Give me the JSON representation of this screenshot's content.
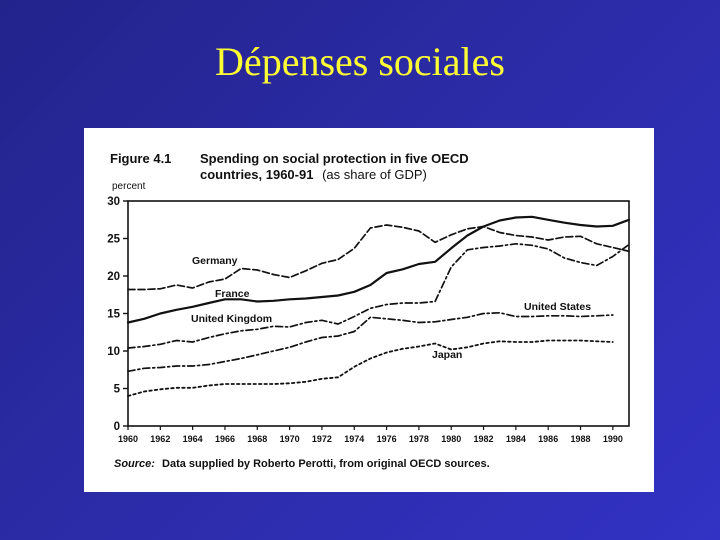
{
  "slide": {
    "title": "Dépenses sociales"
  },
  "figure": {
    "number": "Figure 4.1",
    "title_bold_1": "Spending on social protection in five OECD",
    "title_bold_2": "countries, 1960-91",
    "title_normal": "(as share of GDP)",
    "unit": "percent",
    "source_label": "Source:",
    "source_text": "Data supplied by Roberto Perotti, from original OECD sources."
  },
  "chart_data": {
    "type": "line",
    "xlim": [
      1960,
      1991
    ],
    "ylim": [
      0,
      30
    ],
    "x_ticks": [
      1960,
      1962,
      1964,
      1966,
      1968,
      1970,
      1972,
      1974,
      1976,
      1978,
      1980,
      1982,
      1984,
      1986,
      1988,
      1990
    ],
    "y_ticks": [
      0,
      5,
      10,
      15,
      20,
      25,
      30
    ],
    "grid": false,
    "series": [
      {
        "name": "Germany",
        "style": "dashed",
        "x": [
          1960,
          1961,
          1962,
          1963,
          1964,
          1965,
          1966,
          1967,
          1968,
          1969,
          1970,
          1971,
          1972,
          1973,
          1974,
          1975,
          1976,
          1977,
          1978,
          1979,
          1980,
          1981,
          1982,
          1983,
          1984,
          1985,
          1986,
          1987,
          1988,
          1989,
          1990,
          1991
        ],
        "y": [
          18.2,
          18.2,
          18.3,
          18.8,
          18.4,
          19.2,
          19.6,
          21.0,
          20.8,
          20.2,
          19.8,
          20.7,
          21.7,
          22.2,
          23.7,
          26.4,
          26.8,
          26.5,
          26.0,
          24.5,
          25.5,
          26.3,
          26.6,
          25.8,
          25.4,
          25.2,
          24.8,
          25.2,
          25.3,
          24.3,
          23.8,
          23.3
        ]
      },
      {
        "name": "France",
        "style": "solid",
        "x": [
          1960,
          1961,
          1962,
          1963,
          1964,
          1965,
          1966,
          1967,
          1968,
          1969,
          1970,
          1971,
          1972,
          1973,
          1974,
          1975,
          1976,
          1977,
          1978,
          1979,
          1980,
          1981,
          1982,
          1983,
          1984,
          1985,
          1986,
          1987,
          1988,
          1989,
          1990,
          1991
        ],
        "y": [
          13.8,
          14.3,
          15.0,
          15.5,
          15.9,
          16.4,
          16.9,
          16.9,
          16.6,
          16.7,
          16.9,
          17.0,
          17.2,
          17.4,
          17.9,
          18.8,
          20.4,
          20.9,
          21.6,
          21.9,
          23.7,
          25.4,
          26.6,
          27.4,
          27.8,
          27.9,
          27.5,
          27.1,
          26.8,
          26.6,
          26.7,
          27.5
        ]
      },
      {
        "name": "United Kingdom",
        "style": "dash-dot",
        "x": [
          1960,
          1961,
          1962,
          1963,
          1964,
          1965,
          1966,
          1967,
          1968,
          1969,
          1970,
          1971,
          1972,
          1973,
          1974,
          1975,
          1976,
          1977,
          1978,
          1979,
          1980,
          1981,
          1982,
          1983,
          1984,
          1985,
          1986,
          1987,
          1988,
          1989,
          1990,
          1991
        ],
        "y": [
          10.4,
          10.6,
          10.9,
          11.4,
          11.2,
          11.8,
          12.3,
          12.7,
          12.9,
          13.3,
          13.2,
          13.8,
          14.1,
          13.6,
          14.6,
          15.7,
          16.2,
          16.4,
          16.4,
          16.6,
          21.2,
          23.5,
          23.8,
          24.0,
          24.3,
          24.1,
          23.6,
          22.4,
          21.8,
          21.4,
          22.6,
          24.2
        ]
      },
      {
        "name": "United States",
        "style": "dash-dot",
        "x": [
          1960,
          1961,
          1962,
          1963,
          1964,
          1965,
          1966,
          1967,
          1968,
          1969,
          1970,
          1971,
          1972,
          1973,
          1974,
          1975,
          1976,
          1977,
          1978,
          1979,
          1980,
          1981,
          1982,
          1983,
          1984,
          1985,
          1986,
          1987,
          1988,
          1989,
          1990
        ],
        "y": [
          7.3,
          7.7,
          7.8,
          8.0,
          8.0,
          8.2,
          8.6,
          9.0,
          9.5,
          10.0,
          10.5,
          11.2,
          11.8,
          12.0,
          12.6,
          14.5,
          14.3,
          14.1,
          13.8,
          13.9,
          14.2,
          14.5,
          15.0,
          15.1,
          14.6,
          14.6,
          14.7,
          14.7,
          14.6,
          14.7,
          14.8
        ]
      },
      {
        "name": "Japan",
        "style": "dotted",
        "x": [
          1960,
          1961,
          1962,
          1963,
          1964,
          1965,
          1966,
          1967,
          1968,
          1969,
          1970,
          1971,
          1972,
          1973,
          1974,
          1975,
          1976,
          1977,
          1978,
          1979,
          1980,
          1981,
          1982,
          1983,
          1984,
          1985,
          1986,
          1987,
          1988,
          1989,
          1990
        ],
        "y": [
          4.0,
          4.6,
          4.9,
          5.1,
          5.1,
          5.4,
          5.6,
          5.6,
          5.6,
          5.6,
          5.7,
          5.9,
          6.3,
          6.5,
          7.9,
          9.0,
          9.8,
          10.3,
          10.6,
          11.0,
          10.2,
          10.5,
          11.0,
          11.3,
          11.2,
          11.2,
          11.4,
          11.4,
          11.4,
          11.3,
          11.2
        ]
      }
    ],
    "labels": {
      "germany": "Germany",
      "france": "France",
      "united_kingdom": "United Kingdom",
      "united_states": "United States",
      "japan": "Japan"
    }
  }
}
